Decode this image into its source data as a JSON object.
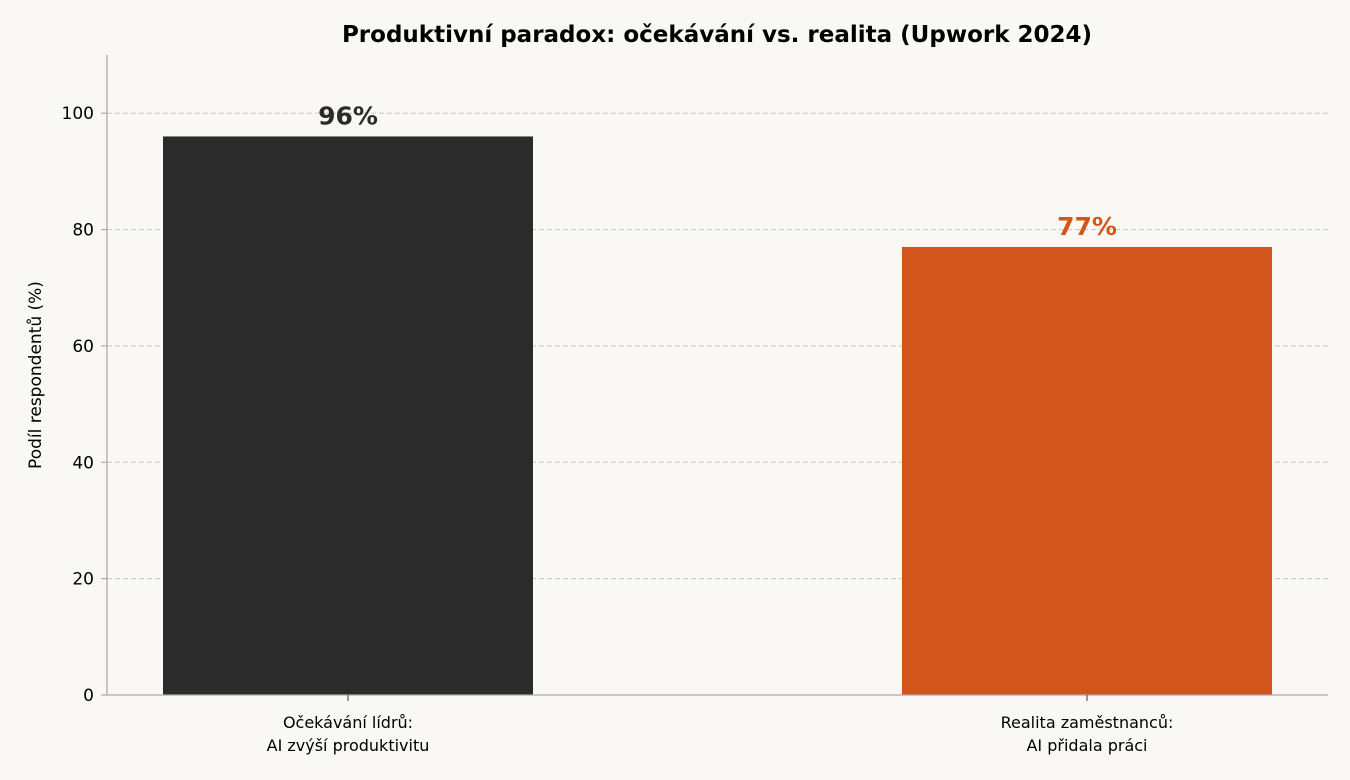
{
  "chart_data": {
    "type": "bar",
    "title": "Produktivní paradox: očekávání vs. realita (Upwork 2024)",
    "xlabel": "",
    "ylabel": "Podíl respondentů (%)",
    "ylim": [
      0,
      110
    ],
    "yticks": [
      0,
      20,
      40,
      60,
      80,
      100
    ],
    "grid": "horizontal dashed",
    "categories": [
      [
        "Očekávání lídrů:",
        "AI zvýší produktivitu"
      ],
      [
        "Realita zaměstnanců:",
        "AI přidala práci"
      ]
    ],
    "values": [
      96,
      77
    ],
    "data_labels": [
      "96%",
      "77%"
    ],
    "colors": [
      "#2b2b2b",
      "#d2561b"
    ]
  }
}
